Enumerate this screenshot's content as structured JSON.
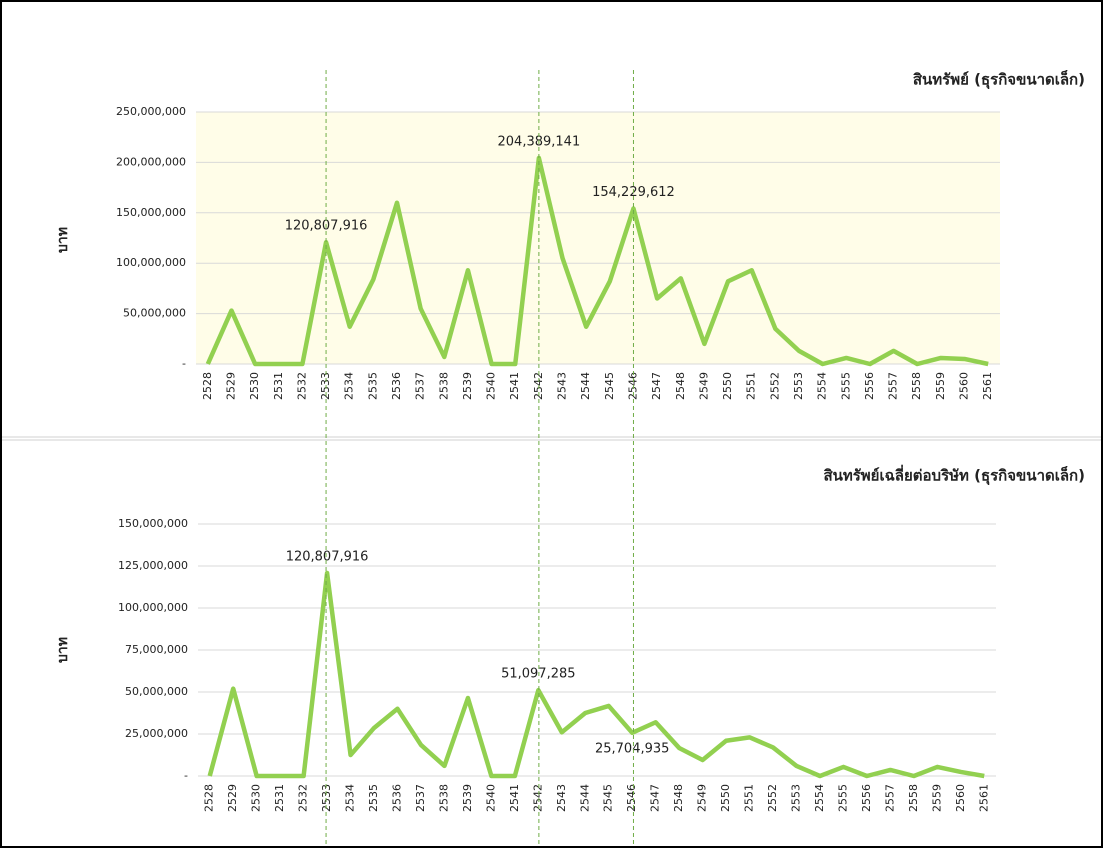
{
  "chart_data": [
    {
      "type": "line",
      "title": "สินทรัพย์ (ธุรกิจขนาดเล็ก)",
      "y_label": "บาท",
      "categories": [
        "2528",
        "2529",
        "2530",
        "2531",
        "2532",
        "2533",
        "2534",
        "2535",
        "2536",
        "2537",
        "2538",
        "2539",
        "2540",
        "2541",
        "2542",
        "2543",
        "2544",
        "2545",
        "2546",
        "2547",
        "2548",
        "2549",
        "2550",
        "2551",
        "2552",
        "2553",
        "2554",
        "2555",
        "2556",
        "2557",
        "2558",
        "2559",
        "2560",
        "2561"
      ],
      "values": [
        0,
        53000000,
        0,
        0,
        0,
        120807916,
        37000000,
        84000000,
        160000000,
        55000000,
        7000000,
        93000000,
        0,
        0,
        204389141,
        105000000,
        37000000,
        82000000,
        154229612,
        65000000,
        85000000,
        20000000,
        82000000,
        93000000,
        35000000,
        13000000,
        0,
        6000000,
        0,
        13000000,
        0,
        6000000,
        5000000,
        0
      ],
      "value_labels": [
        null,
        null,
        null,
        null,
        null,
        "120,807,916",
        null,
        null,
        null,
        null,
        null,
        null,
        null,
        null,
        "204,389,141",
        null,
        null,
        null,
        "154,229,612",
        null,
        null,
        null,
        null,
        null,
        null,
        null,
        null,
        null,
        null,
        null,
        null,
        null,
        null,
        null
      ],
      "color": "#92d050",
      "ylim": [
        0,
        250000000
      ],
      "yticks": [
        {
          "value": 0,
          "label": "-"
        },
        {
          "value": 50000000,
          "label": "50,000,000"
        },
        {
          "value": 100000000,
          "label": "100,000,000"
        },
        {
          "value": 150000000,
          "label": "150,000,000"
        },
        {
          "value": 200000000,
          "label": "200,000,000"
        },
        {
          "value": 250000000,
          "label": "250,000,000"
        }
      ],
      "grid": true
    },
    {
      "type": "line",
      "title": "สินทรัพย์เฉลี่ยต่อบริษัท (ธุรกิจขนาดเล็ก)",
      "y_label": "บาท",
      "categories": [
        "2528",
        "2529",
        "2530",
        "2531",
        "2532",
        "2533",
        "2534",
        "2535",
        "2536",
        "2537",
        "2538",
        "2539",
        "2540",
        "2541",
        "2542",
        "2543",
        "2544",
        "2545",
        "2546",
        "2547",
        "2548",
        "2549",
        "2550",
        "2551",
        "2552",
        "2553",
        "2554",
        "2555",
        "2556",
        "2557",
        "2558",
        "2559",
        "2560",
        "2561"
      ],
      "values": [
        0,
        52000000,
        0,
        0,
        0,
        120807916,
        12500000,
        28600000,
        40000000,
        18500000,
        6000000,
        46400000,
        0,
        0,
        51097285,
        26000000,
        37500000,
        41700000,
        25704935,
        32000000,
        16700000,
        9500000,
        21000000,
        23000000,
        17000000,
        6000000,
        0,
        5400000,
        0,
        3600000,
        0,
        5400000,
        2400000,
        0
      ],
      "value_labels": [
        null,
        null,
        null,
        null,
        null,
        "120,807,916",
        null,
        null,
        null,
        null,
        null,
        null,
        null,
        null,
        "51,097,285",
        null,
        null,
        null,
        "25,704,935",
        null,
        null,
        null,
        null,
        null,
        null,
        null,
        null,
        null,
        null,
        null,
        null,
        null,
        null,
        null
      ],
      "color": "#92d050",
      "ylim": [
        0,
        150000000
      ],
      "yticks": [
        {
          "value": 0,
          "label": "-"
        },
        {
          "value": 25000000,
          "label": "25,000,000"
        },
        {
          "value": 50000000,
          "label": "50,000,000"
        },
        {
          "value": 75000000,
          "label": "75,000,000"
        },
        {
          "value": 100000000,
          "label": "100,000,000"
        },
        {
          "value": 125000000,
          "label": "125,000,000"
        },
        {
          "value": 150000000,
          "label": "150,000,000"
        }
      ],
      "grid": true
    }
  ],
  "highlight_indices": [
    5,
    14,
    18
  ]
}
